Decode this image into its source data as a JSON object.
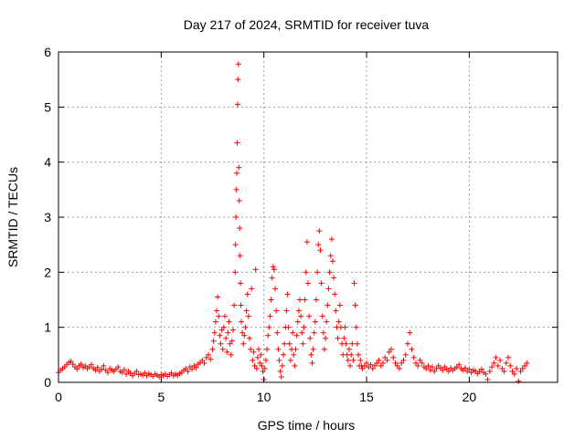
{
  "chart_data": {
    "type": "scatter",
    "title": "Day 217 of 2024, SRMTID for receiver tuva",
    "xlabel": "GPS time / hours",
    "ylabel": "SRMTID / TECUs",
    "xlim": [
      0,
      24.3
    ],
    "ylim": [
      0,
      6
    ],
    "xticks": [
      0,
      5,
      10,
      15,
      20
    ],
    "yticks": [
      0,
      1,
      2,
      3,
      4,
      5,
      6
    ],
    "grid": true,
    "marker": "+",
    "color": "#ff0000",
    "series": [
      {
        "name": "SRMTID",
        "points": [
          [
            0.0,
            0.18
          ],
          [
            0.1,
            0.22
          ],
          [
            0.2,
            0.25
          ],
          [
            0.3,
            0.28
          ],
          [
            0.4,
            0.32
          ],
          [
            0.5,
            0.36
          ],
          [
            0.6,
            0.38
          ],
          [
            0.7,
            0.33
          ],
          [
            0.8,
            0.28
          ],
          [
            0.9,
            0.24
          ],
          [
            1.0,
            0.3
          ],
          [
            1.1,
            0.33
          ],
          [
            1.2,
            0.27
          ],
          [
            1.3,
            0.3
          ],
          [
            1.4,
            0.25
          ],
          [
            1.5,
            0.28
          ],
          [
            1.6,
            0.32
          ],
          [
            1.7,
            0.25
          ],
          [
            1.8,
            0.22
          ],
          [
            1.9,
            0.27
          ],
          [
            2.0,
            0.2
          ],
          [
            2.1,
            0.24
          ],
          [
            2.2,
            0.3
          ],
          [
            2.3,
            0.22
          ],
          [
            2.4,
            0.18
          ],
          [
            2.5,
            0.25
          ],
          [
            2.6,
            0.22
          ],
          [
            2.7,
            0.2
          ],
          [
            2.8,
            0.24
          ],
          [
            2.9,
            0.28
          ],
          [
            3.0,
            0.2
          ],
          [
            3.1,
            0.18
          ],
          [
            3.2,
            0.23
          ],
          [
            3.3,
            0.15
          ],
          [
            3.4,
            0.2
          ],
          [
            3.5,
            0.17
          ],
          [
            3.6,
            0.12
          ],
          [
            3.7,
            0.16
          ],
          [
            3.8,
            0.2
          ],
          [
            3.9,
            0.14
          ],
          [
            4.0,
            0.15
          ],
          [
            4.1,
            0.13
          ],
          [
            4.2,
            0.17
          ],
          [
            4.3,
            0.12
          ],
          [
            4.4,
            0.16
          ],
          [
            4.5,
            0.14
          ],
          [
            4.6,
            0.11
          ],
          [
            4.7,
            0.15
          ],
          [
            4.8,
            0.13
          ],
          [
            4.9,
            0.1
          ],
          [
            5.0,
            0.14
          ],
          [
            5.1,
            0.12
          ],
          [
            5.2,
            0.15
          ],
          [
            5.3,
            0.11
          ],
          [
            5.4,
            0.14
          ],
          [
            5.5,
            0.17
          ],
          [
            5.6,
            0.12
          ],
          [
            5.7,
            0.15
          ],
          [
            5.8,
            0.13
          ],
          [
            5.9,
            0.16
          ],
          [
            6.0,
            0.18
          ],
          [
            6.1,
            0.22
          ],
          [
            6.2,
            0.25
          ],
          [
            6.3,
            0.2
          ],
          [
            6.4,
            0.28
          ],
          [
            6.5,
            0.24
          ],
          [
            6.6,
            0.3
          ],
          [
            6.7,
            0.27
          ],
          [
            6.8,
            0.33
          ],
          [
            6.9,
            0.36
          ],
          [
            7.0,
            0.4
          ],
          [
            7.1,
            0.35
          ],
          [
            7.2,
            0.45
          ],
          [
            7.3,
            0.5
          ],
          [
            7.4,
            0.42
          ],
          [
            7.5,
            0.6
          ],
          [
            7.55,
            0.75
          ],
          [
            7.6,
            0.9
          ],
          [
            7.65,
            1.1
          ],
          [
            7.7,
            1.3
          ],
          [
            7.75,
            1.55
          ],
          [
            7.8,
            1.2
          ],
          [
            7.85,
            0.85
          ],
          [
            7.9,
            0.7
          ],
          [
            7.95,
            0.95
          ],
          [
            8.0,
            0.6
          ],
          [
            8.05,
            1.0
          ],
          [
            8.1,
            1.2
          ],
          [
            8.15,
            0.8
          ],
          [
            8.2,
            0.55
          ],
          [
            8.25,
            0.9
          ],
          [
            8.3,
            1.1
          ],
          [
            8.35,
            0.7
          ],
          [
            8.4,
            0.5
          ],
          [
            8.45,
            0.75
          ],
          [
            8.5,
            0.95
          ],
          [
            8.55,
            1.4
          ],
          [
            8.6,
            2.0
          ],
          [
            8.62,
            2.5
          ],
          [
            8.64,
            3.0
          ],
          [
            8.66,
            3.5
          ],
          [
            8.68,
            3.8
          ],
          [
            8.7,
            4.35
          ],
          [
            8.72,
            5.05
          ],
          [
            8.74,
            5.5
          ],
          [
            8.76,
            5.78
          ],
          [
            8.78,
            3.9
          ],
          [
            8.8,
            3.3
          ],
          [
            8.82,
            2.8
          ],
          [
            8.84,
            2.3
          ],
          [
            8.86,
            1.8
          ],
          [
            8.88,
            1.4
          ],
          [
            8.9,
            1.1
          ],
          [
            8.95,
            0.9
          ],
          [
            9.0,
            0.7
          ],
          [
            9.05,
            0.85
          ],
          [
            9.1,
            1.0
          ],
          [
            9.15,
            1.3
          ],
          [
            9.2,
            1.6
          ],
          [
            9.25,
            1.2
          ],
          [
            9.3,
            0.8
          ],
          [
            9.35,
            0.6
          ],
          [
            9.4,
            1.7
          ],
          [
            9.45,
            0.4
          ],
          [
            9.5,
            0.55
          ],
          [
            9.55,
            0.3
          ],
          [
            9.6,
            2.05
          ],
          [
            9.65,
            0.25
          ],
          [
            9.7,
            0.45
          ],
          [
            9.75,
            0.6
          ],
          [
            9.8,
            0.35
          ],
          [
            9.85,
            0.5
          ],
          [
            9.9,
            0.3
          ],
          [
            9.95,
            0.2
          ],
          [
            10.0,
            0.05
          ],
          [
            10.05,
            0.25
          ],
          [
            10.1,
            0.4
          ],
          [
            10.15,
            0.6
          ],
          [
            10.2,
            0.85
          ],
          [
            10.25,
            1.0
          ],
          [
            10.3,
            1.2
          ],
          [
            10.35,
            1.5
          ],
          [
            10.4,
            1.9
          ],
          [
            10.45,
            2.1
          ],
          [
            10.5,
            2.05
          ],
          [
            10.55,
            1.7
          ],
          [
            10.6,
            1.3
          ],
          [
            10.65,
            0.9
          ],
          [
            10.7,
            0.6
          ],
          [
            10.75,
            0.4
          ],
          [
            10.8,
            0.2
          ],
          [
            10.85,
            0.1
          ],
          [
            10.9,
            0.3
          ],
          [
            10.95,
            0.5
          ],
          [
            11.0,
            0.7
          ],
          [
            11.05,
            1.0
          ],
          [
            11.1,
            1.3
          ],
          [
            11.15,
            1.6
          ],
          [
            11.2,
            1.0
          ],
          [
            11.25,
            0.7
          ],
          [
            11.3,
            0.4
          ],
          [
            11.35,
            0.6
          ],
          [
            11.4,
            0.9
          ],
          [
            11.45,
            0.5
          ],
          [
            11.5,
            0.3
          ],
          [
            11.55,
            0.6
          ],
          [
            11.6,
            0.85
          ],
          [
            11.65,
            1.1
          ],
          [
            11.7,
            1.3
          ],
          [
            11.75,
            1.5
          ],
          [
            11.8,
            1.2
          ],
          [
            11.85,
            0.9
          ],
          [
            11.9,
            0.7
          ],
          [
            11.95,
            1.0
          ],
          [
            12.0,
            1.5
          ],
          [
            12.05,
            2.0
          ],
          [
            12.1,
            2.55
          ],
          [
            12.15,
            1.8
          ],
          [
            12.2,
            1.2
          ],
          [
            12.25,
            0.8
          ],
          [
            12.3,
            0.5
          ],
          [
            12.35,
            0.35
          ],
          [
            12.4,
            0.6
          ],
          [
            12.45,
            0.9
          ],
          [
            12.5,
            1.1
          ],
          [
            12.55,
            1.5
          ],
          [
            12.6,
            2.0
          ],
          [
            12.65,
            2.5
          ],
          [
            12.7,
            2.75
          ],
          [
            12.75,
            2.4
          ],
          [
            12.8,
            1.8
          ],
          [
            12.85,
            1.2
          ],
          [
            12.9,
            0.9
          ],
          [
            12.95,
            0.6
          ],
          [
            13.0,
            0.8
          ],
          [
            13.05,
            1.1
          ],
          [
            13.1,
            1.4
          ],
          [
            13.15,
            1.7
          ],
          [
            13.2,
            2.0
          ],
          [
            13.25,
            2.3
          ],
          [
            13.3,
            2.6
          ],
          [
            13.35,
            2.2
          ],
          [
            13.4,
            1.9
          ],
          [
            13.45,
            1.6
          ],
          [
            13.5,
            1.3
          ],
          [
            13.55,
            1.0
          ],
          [
            13.6,
            0.8
          ],
          [
            13.65,
            1.1
          ],
          [
            13.7,
            1.4
          ],
          [
            13.75,
            1.0
          ],
          [
            13.8,
            0.7
          ],
          [
            13.85,
            0.5
          ],
          [
            13.9,
            0.8
          ],
          [
            13.95,
            1.0
          ],
          [
            14.0,
            0.7
          ],
          [
            14.05,
            0.5
          ],
          [
            14.1,
            0.4
          ],
          [
            14.15,
            0.6
          ],
          [
            14.2,
            0.3
          ],
          [
            14.25,
            0.5
          ],
          [
            14.3,
            0.7
          ],
          [
            14.35,
            0.4
          ],
          [
            14.4,
            1.8
          ],
          [
            14.45,
            1.4
          ],
          [
            14.5,
            1.0
          ],
          [
            14.55,
            0.7
          ],
          [
            14.6,
            0.5
          ],
          [
            14.65,
            0.3
          ],
          [
            14.7,
            0.4
          ],
          [
            14.75,
            0.3
          ],
          [
            14.8,
            0.25
          ],
          [
            14.9,
            0.3
          ],
          [
            15.0,
            0.35
          ],
          [
            15.1,
            0.28
          ],
          [
            15.2,
            0.32
          ],
          [
            15.3,
            0.25
          ],
          [
            15.4,
            0.3
          ],
          [
            15.5,
            0.35
          ],
          [
            15.6,
            0.4
          ],
          [
            15.7,
            0.3
          ],
          [
            15.8,
            0.35
          ],
          [
            15.9,
            0.45
          ],
          [
            16.0,
            0.4
          ],
          [
            16.1,
            0.55
          ],
          [
            16.2,
            0.6
          ],
          [
            16.3,
            0.45
          ],
          [
            16.4,
            0.35
          ],
          [
            16.5,
            0.3
          ],
          [
            16.6,
            0.25
          ],
          [
            16.7,
            0.35
          ],
          [
            16.8,
            0.4
          ],
          [
            16.9,
            0.5
          ],
          [
            17.0,
            0.7
          ],
          [
            17.1,
            0.9
          ],
          [
            17.2,
            0.6
          ],
          [
            17.3,
            0.45
          ],
          [
            17.4,
            0.35
          ],
          [
            17.5,
            0.3
          ],
          [
            17.6,
            0.4
          ],
          [
            17.7,
            0.35
          ],
          [
            17.8,
            0.28
          ],
          [
            17.9,
            0.25
          ],
          [
            18.0,
            0.3
          ],
          [
            18.1,
            0.22
          ],
          [
            18.2,
            0.28
          ],
          [
            18.3,
            0.2
          ],
          [
            18.4,
            0.25
          ],
          [
            18.5,
            0.3
          ],
          [
            18.6,
            0.26
          ],
          [
            18.7,
            0.22
          ],
          [
            18.8,
            0.28
          ],
          [
            18.9,
            0.24
          ],
          [
            19.0,
            0.2
          ],
          [
            19.1,
            0.26
          ],
          [
            19.2,
            0.22
          ],
          [
            19.3,
            0.25
          ],
          [
            19.4,
            0.28
          ],
          [
            19.5,
            0.32
          ],
          [
            19.6,
            0.25
          ],
          [
            19.7,
            0.22
          ],
          [
            19.8,
            0.26
          ],
          [
            19.9,
            0.2
          ],
          [
            20.0,
            0.24
          ],
          [
            20.1,
            0.18
          ],
          [
            20.2,
            0.22
          ],
          [
            20.3,
            0.2
          ],
          [
            20.4,
            0.16
          ],
          [
            20.5,
            0.2
          ],
          [
            20.6,
            0.24
          ],
          [
            20.7,
            0.18
          ],
          [
            20.8,
            0.15
          ],
          [
            20.9,
            0.05
          ],
          [
            21.0,
            0.2
          ],
          [
            21.1,
            0.28
          ],
          [
            21.2,
            0.35
          ],
          [
            21.3,
            0.45
          ],
          [
            21.4,
            0.3
          ],
          [
            21.5,
            0.4
          ],
          [
            21.6,
            0.25
          ],
          [
            21.7,
            0.2
          ],
          [
            21.8,
            0.35
          ],
          [
            21.9,
            0.45
          ],
          [
            22.0,
            0.3
          ],
          [
            22.1,
            0.2
          ],
          [
            22.2,
            0.15
          ],
          [
            22.3,
            0.25
          ],
          [
            22.4,
            0.02
          ],
          [
            22.5,
            0.2
          ],
          [
            22.6,
            0.25
          ],
          [
            22.7,
            0.3
          ],
          [
            22.8,
            0.35
          ]
        ]
      }
    ]
  }
}
